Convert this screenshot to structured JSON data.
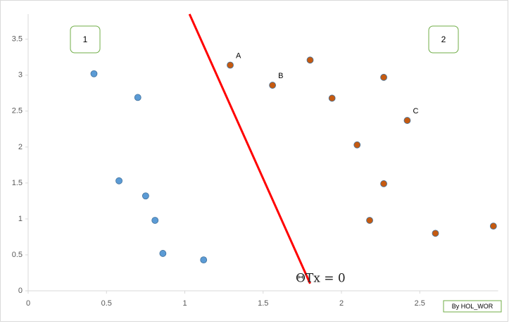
{
  "chart_data": {
    "type": "scatter",
    "xlim": [
      0,
      3
    ],
    "ylim": [
      0,
      3.85
    ],
    "xticks": [
      0,
      0.5,
      1,
      1.5,
      2,
      2.5
    ],
    "yticks": [
      0,
      0.5,
      1,
      1.5,
      2,
      2.5,
      3,
      3.5
    ],
    "series": [
      {
        "color": "#5b9bd5",
        "x": [
          0.42,
          0.7,
          0.58,
          0.75,
          0.81,
          0.86,
          1.12
        ],
        "values": [
          3.02,
          2.69,
          1.53,
          1.32,
          0.98,
          0.52,
          0.43
        ]
      },
      {
        "color": "#c55a11",
        "x": [
          1.29,
          1.56,
          1.8,
          1.94,
          2.27,
          2.42,
          2.1,
          2.27,
          2.18,
          2.6,
          2.97
        ],
        "values": [
          3.14,
          2.86,
          3.21,
          2.68,
          2.97,
          2.37,
          2.03,
          1.49,
          0.98,
          0.8,
          0.9
        ],
        "point_labels": [
          "A",
          "B",
          null,
          null,
          null,
          "C",
          null,
          null,
          null,
          null,
          null
        ]
      }
    ],
    "boundary": {
      "color": "#ff0000",
      "x": [
        1.03,
        1.8
      ],
      "values": [
        3.85,
        0.1
      ],
      "label": "ΘTx = 0"
    },
    "region_labels": [
      "1",
      "2"
    ],
    "credit": "By HOL_WOR"
  }
}
